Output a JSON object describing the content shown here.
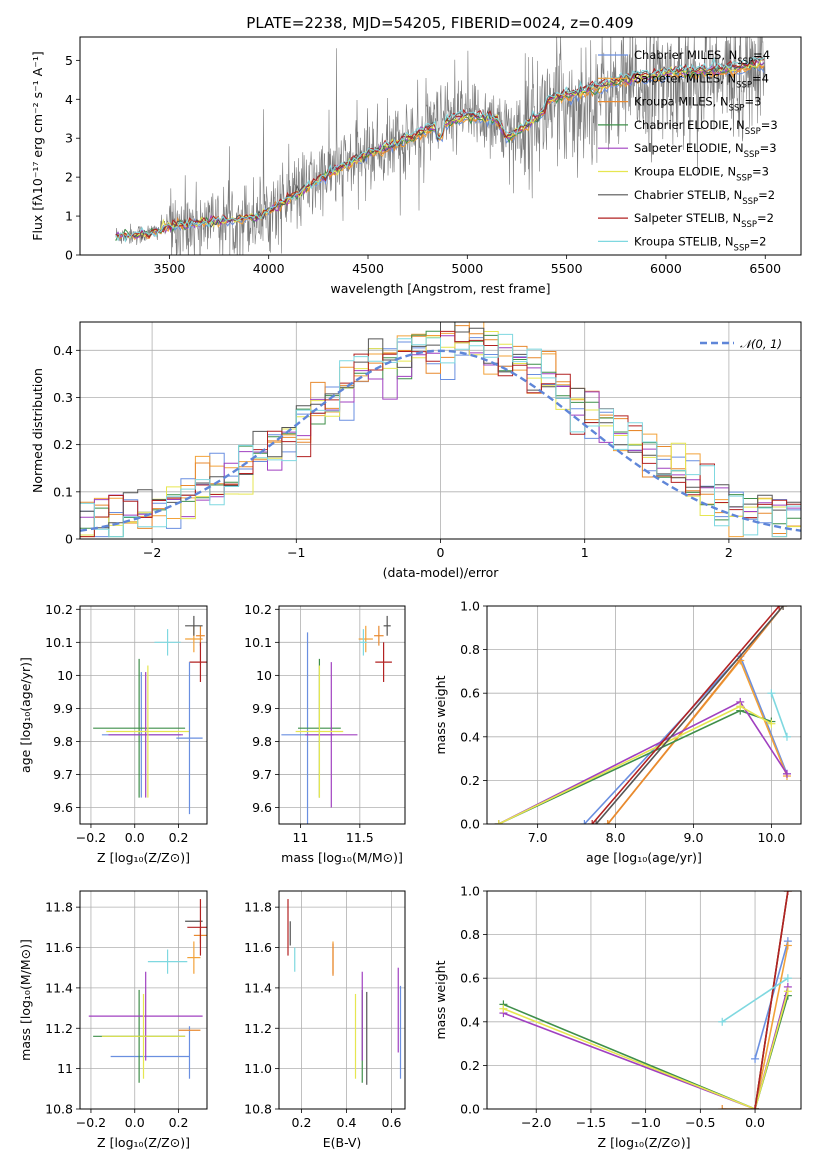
{
  "title": "PLATE=2238, MJD=54205, FIBERID=0024, z=0.409",
  "colors": {
    "cm": "#6a8fe0",
    "sm": "#f2a23a",
    "km": "#e8892f",
    "ce": "#3f8f4a",
    "se": "#a040c0",
    "ke": "#e6e650",
    "cs": "#555555",
    "ss": "#b22222",
    "ks": "#7fd8e0",
    "spectrum": "#7a7a7a",
    "normal": "#5f86d8",
    "grid": "#b0b0b0"
  },
  "models": [
    {
      "key": "cm",
      "pre": "Chabrier MILES, N",
      "sub": "SSP",
      "post": "=4"
    },
    {
      "key": "sm",
      "pre": "Salpeter MILES, N",
      "sub": "SSP",
      "post": "=4"
    },
    {
      "key": "km",
      "pre": "Kroupa MILES, N",
      "sub": "SSP",
      "post": "=3"
    },
    {
      "key": "ce",
      "pre": "Chabrier ELODIE, N",
      "sub": "SSP",
      "post": "=3"
    },
    {
      "key": "se",
      "pre": "Salpeter ELODIE, N",
      "sub": "SSP",
      "post": "=3"
    },
    {
      "key": "ke",
      "pre": "Kroupa ELODIE, N",
      "sub": "SSP",
      "post": "=3"
    },
    {
      "key": "cs",
      "pre": "Chabrier STELIB, N",
      "sub": "SSP",
      "post": "=2"
    },
    {
      "key": "ss",
      "pre": "Salpeter STELIB, N",
      "sub": "SSP",
      "post": "=2"
    },
    {
      "key": "ks",
      "pre": "Kroupa STELIB, N",
      "sub": "SSP",
      "post": "=2"
    }
  ],
  "chart_data": [
    {
      "id": "spectrum",
      "type": "line",
      "xlabel": "wavelength [Angstrom, rest frame]",
      "ylabel": "Flux [fλ10⁻¹⁷ erg cm⁻² s⁻¹ A⁻¹]",
      "xlim": [
        3050,
        6680
      ],
      "ylim": [
        0,
        5.6
      ],
      "xticks": [
        3500,
        4000,
        4500,
        5000,
        5500,
        6000,
        6500
      ],
      "yticks": [
        0,
        1,
        2,
        3,
        4,
        5
      ],
      "continuum": {
        "x": [
          3230,
          3400,
          3500,
          3700,
          3950,
          4150,
          4300,
          4500,
          4700,
          4850,
          5000,
          5150,
          5200,
          5400,
          5600,
          5800,
          6000,
          6200,
          6400,
          6500
        ],
        "y": [
          0.5,
          0.55,
          0.75,
          0.85,
          1.0,
          1.6,
          2.1,
          2.6,
          3.0,
          3.35,
          3.6,
          3.5,
          3.0,
          3.75,
          4.0,
          4.3,
          4.45,
          4.5,
          4.6,
          4.75
        ]
      },
      "legend": "upper right"
    },
    {
      "id": "residuals",
      "type": "step",
      "xlabel": "(data-model)/error",
      "ylabel": "Normed distribution",
      "xlim": [
        -2.5,
        2.5
      ],
      "ylim": [
        0,
        0.46
      ],
      "xticks": [
        -2,
        -1,
        0,
        1,
        2
      ],
      "yticks": [
        0,
        0.1,
        0.2,
        0.3,
        0.4
      ],
      "normal_label": "𝒩(0, 1)",
      "legend": "upper right"
    },
    {
      "id": "age_vs_Z",
      "type": "errorbar",
      "xlabel": "Z [log₁₀(Z/Z⊙)]",
      "ylabel": "age  [log₁₀(age/yr)]",
      "xlim": [
        -0.25,
        0.33
      ],
      "ylim": [
        9.55,
        10.21
      ],
      "xticks": [
        -0.2,
        0.0,
        0.2
      ],
      "yticks": [
        9.6,
        9.7,
        9.8,
        9.9,
        10.0,
        10.1,
        10.2
      ],
      "points": [
        {
          "s": "cm",
          "x": 0.03,
          "y": 9.82,
          "xe": 0.18,
          "ye": 0.19
        },
        {
          "s": "sm",
          "x": 0.27,
          "y": 10.11,
          "xe": 0.04,
          "ye": 0.04
        },
        {
          "s": "km",
          "x": 0.3,
          "y": 10.12,
          "xe": 0.02,
          "ye": 0.03
        },
        {
          "s": "ce",
          "x": 0.02,
          "y": 9.84,
          "xe": 0.21,
          "ye": 0.21
        },
        {
          "s": "se",
          "x": 0.05,
          "y": 9.82,
          "xe": 0.17,
          "ye": 0.19
        },
        {
          "s": "ke",
          "x": 0.06,
          "y": 9.83,
          "xe": 0.19,
          "ye": 0.2
        },
        {
          "s": "cs",
          "x": 0.27,
          "y": 10.15,
          "xe": 0.04,
          "ye": 0.03
        },
        {
          "s": "ss",
          "x": 0.3,
          "y": 10.04,
          "xe": 0.05,
          "ye": 0.06
        },
        {
          "s": "ks",
          "x": 0.15,
          "y": 10.1,
          "xe": 0.06,
          "ye": 0.04
        },
        {
          "s": "cm",
          "x": 0.25,
          "y": 9.81,
          "xe": 0.06,
          "ye": 0.23
        }
      ]
    },
    {
      "id": "age_vs_mass",
      "type": "errorbar",
      "xlabel": "mass [log₁₀(M/M⊙)]",
      "ylabel": "",
      "xlim": [
        10.82,
        11.88
      ],
      "ylim": [
        9.55,
        10.21
      ],
      "xticks": [
        11.0,
        11.5
      ],
      "yticks": [
        9.6,
        9.7,
        9.8,
        9.9,
        10.0,
        10.1,
        10.2
      ],
      "points": [
        {
          "s": "cm",
          "x": 11.06,
          "y": 9.82,
          "xe": 0.22,
          "ye": 0.31
        },
        {
          "s": "sm",
          "x": 11.55,
          "y": 10.11,
          "xe": 0.06,
          "ye": 0.04
        },
        {
          "s": "km",
          "x": 11.66,
          "y": 10.12,
          "xe": 0.04,
          "ye": 0.03
        },
        {
          "s": "ce",
          "x": 11.16,
          "y": 9.84,
          "xe": 0.18,
          "ye": 0.21
        },
        {
          "s": "se",
          "x": 11.26,
          "y": 9.82,
          "xe": 0.22,
          "ye": 0.22
        },
        {
          "s": "ke",
          "x": 11.16,
          "y": 9.83,
          "xe": 0.2,
          "ye": 0.2
        },
        {
          "s": "cs",
          "x": 11.73,
          "y": 10.15,
          "xe": 0.03,
          "ye": 0.03
        },
        {
          "s": "ss",
          "x": 11.7,
          "y": 10.04,
          "xe": 0.07,
          "ye": 0.06
        },
        {
          "s": "ks",
          "x": 11.53,
          "y": 10.1,
          "xe": 0.03,
          "ye": 0.04
        }
      ]
    },
    {
      "id": "weight_vs_age",
      "type": "line",
      "xlabel": "age  [log₁₀(age/yr)]",
      "ylabel": "mass weight",
      "xlim": [
        6.35,
        10.38
      ],
      "ylim": [
        0,
        1.0
      ],
      "xticks": [
        7,
        8,
        9,
        10
      ],
      "yticks": [
        0.0,
        0.2,
        0.4,
        0.6,
        0.8,
        1.0
      ],
      "series": [
        {
          "s": "cm",
          "x": [
            7.6,
            9.6,
            10.2
          ],
          "y": [
            0.0,
            0.77,
            0.23
          ]
        },
        {
          "s": "sm",
          "x": [
            7.9,
            9.6,
            10.2
          ],
          "y": [
            0.0,
            0.75,
            0.22
          ]
        },
        {
          "s": "km",
          "x": [
            7.9,
            10.15
          ],
          "y": [
            0.0,
            1.0
          ]
        },
        {
          "s": "ce",
          "x": [
            6.5,
            9.6,
            10.0
          ],
          "y": [
            0.0,
            0.52,
            0.47
          ]
        },
        {
          "s": "se",
          "x": [
            6.5,
            9.6,
            10.2
          ],
          "y": [
            0.0,
            0.56,
            0.23
          ]
        },
        {
          "s": "ke",
          "x": [
            6.5,
            9.6,
            10.0
          ],
          "y": [
            0.0,
            0.54,
            0.46
          ]
        },
        {
          "s": "cs",
          "x": [
            7.75,
            10.15
          ],
          "y": [
            0.0,
            1.0
          ]
        },
        {
          "s": "ss",
          "x": [
            7.7,
            10.1
          ],
          "y": [
            0.0,
            1.0
          ]
        },
        {
          "s": "ks",
          "x": [
            10.0,
            10.2
          ],
          "y": [
            0.6,
            0.4
          ]
        }
      ]
    },
    {
      "id": "mass_vs_Z",
      "type": "errorbar",
      "xlabel": "Z [log₁₀(Z/Z⊙)]",
      "ylabel": "mass [log₁₀(M/M⊙)]",
      "xlim": [
        -0.25,
        0.33
      ],
      "ylim": [
        10.8,
        11.88
      ],
      "xticks": [
        -0.2,
        0.0,
        0.2
      ],
      "yticks": [
        10.8,
        11.0,
        11.2,
        11.4,
        11.6,
        11.8
      ],
      "points": [
        {
          "s": "cm",
          "x": 0.07,
          "y": 11.06,
          "xe": 0.18,
          "ye": 0.0
        },
        {
          "s": "cm",
          "x": 0.25,
          "y": 11.08,
          "xe": 0.0,
          "ye": 0.13
        },
        {
          "s": "sm",
          "x": 0.27,
          "y": 11.55,
          "xe": 0.03,
          "ye": 0.08
        },
        {
          "s": "km",
          "x": 0.3,
          "y": 11.66,
          "xe": 0.03,
          "ye": 0.04
        },
        {
          "s": "ce",
          "x": 0.02,
          "y": 11.16,
          "xe": 0.21,
          "ye": 0.23
        },
        {
          "s": "se",
          "x": 0.05,
          "y": 11.26,
          "xe": 0.26,
          "ye": 0.22
        },
        {
          "s": "ke",
          "x": 0.04,
          "y": 11.16,
          "xe": 0.19,
          "ye": 0.21
        },
        {
          "s": "cs",
          "x": 0.27,
          "y": 11.73,
          "xe": 0.04,
          "ye": 0.0
        },
        {
          "s": "ss",
          "x": 0.3,
          "y": 11.7,
          "xe": 0.06,
          "ye": 0.14
        },
        {
          "s": "ks",
          "x": 0.15,
          "y": 11.53,
          "xe": 0.09,
          "ye": 0.06
        },
        {
          "s": "km",
          "x": 0.25,
          "y": 11.19,
          "xe": 0.05,
          "ye": 0.0
        }
      ]
    },
    {
      "id": "mass_vs_ebv",
      "type": "errorbar",
      "xlabel": "E(B-V)",
      "ylabel": "",
      "xlim": [
        0.1,
        0.66
      ],
      "ylim": [
        10.8,
        11.88
      ],
      "xticks": [
        0.2,
        0.4,
        0.6
      ],
      "yticks": [
        10.8,
        11.0,
        11.2,
        11.4,
        11.6,
        11.8
      ],
      "points": [
        {
          "s": "cm",
          "x": 0.64,
          "y": 11.18,
          "xe": 0.0,
          "ye": 0.23
        },
        {
          "s": "sm",
          "x": 0.34,
          "y": 11.55,
          "xe": 0.0,
          "ye": 0.08
        },
        {
          "s": "km",
          "x": 0.34,
          "y": 11.54,
          "xe": 0.0,
          "ye": 0.08
        },
        {
          "s": "ce",
          "x": 0.47,
          "y": 11.16,
          "xe": 0.0,
          "ye": 0.23
        },
        {
          "s": "se",
          "x": 0.47,
          "y": 11.26,
          "xe": 0.0,
          "ye": 0.22
        },
        {
          "s": "ke",
          "x": 0.44,
          "y": 11.16,
          "xe": 0.0,
          "ye": 0.21
        },
        {
          "s": "cs",
          "x": 0.15,
          "y": 11.67,
          "xe": 0.0,
          "ye": 0.06
        },
        {
          "s": "ss",
          "x": 0.14,
          "y": 11.7,
          "xe": 0.0,
          "ye": 0.14
        },
        {
          "s": "ks",
          "x": 0.17,
          "y": 11.54,
          "xe": 0.0,
          "ye": 0.06
        },
        {
          "s": "se",
          "x": 0.63,
          "y": 11.29,
          "xe": 0.0,
          "ye": 0.21
        },
        {
          "s": "cs",
          "x": 0.49,
          "y": 11.15,
          "xe": 0.0,
          "ye": 0.23
        }
      ]
    },
    {
      "id": "weight_vs_Z",
      "type": "line",
      "xlabel": "Z [log₁₀(Z/Z⊙)]",
      "ylabel": "mass weight",
      "xlim": [
        -2.45,
        0.42
      ],
      "ylim": [
        0,
        1.0
      ],
      "xticks": [
        -2.0,
        -1.5,
        -1.0,
        -0.5,
        0.0
      ],
      "yticks": [
        0.0,
        0.2,
        0.4,
        0.6,
        0.8,
        1.0
      ],
      "series": [
        {
          "s": "cm",
          "x": [
            0.0,
            0.3
          ],
          "y": [
            0.23,
            0.77
          ]
        },
        {
          "s": "sm",
          "x": [
            0.0,
            0.3
          ],
          "y": [
            0.0,
            0.75
          ]
        },
        {
          "s": "km",
          "x": [
            -0.3,
            0.0,
            0.3
          ],
          "y": [
            0.0,
            0.0,
            1.0
          ]
        },
        {
          "s": "ce",
          "x": [
            -2.3,
            0.0,
            0.3
          ],
          "y": [
            0.48,
            0.0,
            0.52
          ]
        },
        {
          "s": "se",
          "x": [
            -2.3,
            0.0,
            0.3
          ],
          "y": [
            0.44,
            0.0,
            0.56
          ]
        },
        {
          "s": "ke",
          "x": [
            -2.3,
            0.0,
            0.3
          ],
          "y": [
            0.46,
            0.0,
            0.54
          ]
        },
        {
          "s": "cs",
          "x": [
            0.0,
            0.3
          ],
          "y": [
            0.0,
            1.0
          ]
        },
        {
          "s": "ss",
          "x": [
            0.0,
            0.3
          ],
          "y": [
            0.0,
            1.0
          ]
        },
        {
          "s": "ks",
          "x": [
            -0.3,
            0.3
          ],
          "y": [
            0.4,
            0.6
          ]
        }
      ]
    }
  ]
}
